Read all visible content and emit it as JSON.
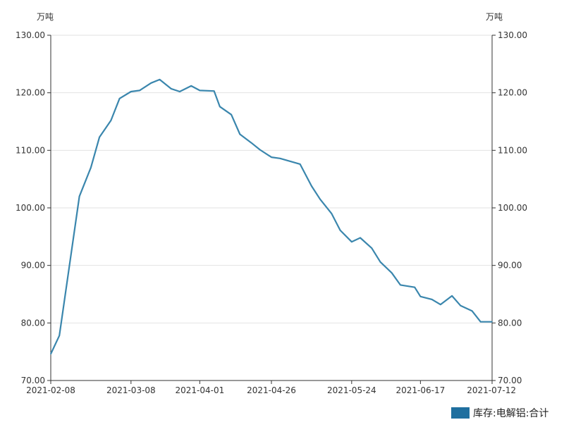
{
  "chart_data": {
    "type": "line",
    "y_unit_left": "万吨",
    "y_unit_right": "万吨",
    "ylim": [
      70,
      130
    ],
    "y_ticks": [
      "130.00",
      "120.00",
      "110.00",
      "100.00",
      "90.00",
      "80.00",
      "70.00"
    ],
    "x_ticks": [
      "2021-02-08",
      "2021-03-08",
      "2021-04-01",
      "2021-04-26",
      "2021-05-24",
      "2021-06-17",
      "2021-07-12"
    ],
    "grid": "horizontal",
    "legend": {
      "position": "bottom-right",
      "label": "库存:电解铝:合计"
    },
    "series": [
      {
        "name": "库存:电解铝:合计",
        "color": "#3a86ad",
        "x": [
          "2021-02-08",
          "2021-02-11",
          "2021-02-18",
          "2021-02-22",
          "2021-02-25",
          "2021-03-01",
          "2021-03-04",
          "2021-03-08",
          "2021-03-11",
          "2021-03-15",
          "2021-03-18",
          "2021-03-22",
          "2021-03-25",
          "2021-03-29",
          "2021-04-01",
          "2021-04-06",
          "2021-04-08",
          "2021-04-12",
          "2021-04-15",
          "2021-04-19",
          "2021-04-22",
          "2021-04-26",
          "2021-04-29",
          "2021-05-06",
          "2021-05-10",
          "2021-05-13",
          "2021-05-17",
          "2021-05-20",
          "2021-05-24",
          "2021-05-27",
          "2021-05-31",
          "2021-06-03",
          "2021-06-07",
          "2021-06-10",
          "2021-06-15",
          "2021-06-17",
          "2021-06-21",
          "2021-06-24",
          "2021-06-28",
          "2021-07-01",
          "2021-07-05",
          "2021-07-08",
          "2021-07-12"
        ],
        "y": [
          74.6,
          77.8,
          102.0,
          107.0,
          112.3,
          115.2,
          119.0,
          120.2,
          120.4,
          121.7,
          122.3,
          120.7,
          120.2,
          121.2,
          120.4,
          120.3,
          117.6,
          116.2,
          112.8,
          111.3,
          110.1,
          108.8,
          108.6,
          107.6,
          103.8,
          101.5,
          99.0,
          96.1,
          94.1,
          94.8,
          93.0,
          90.6,
          88.7,
          86.6,
          86.2,
          84.6,
          84.1,
          83.2,
          84.7,
          83.0,
          82.1,
          80.2,
          80.2
        ]
      }
    ]
  }
}
